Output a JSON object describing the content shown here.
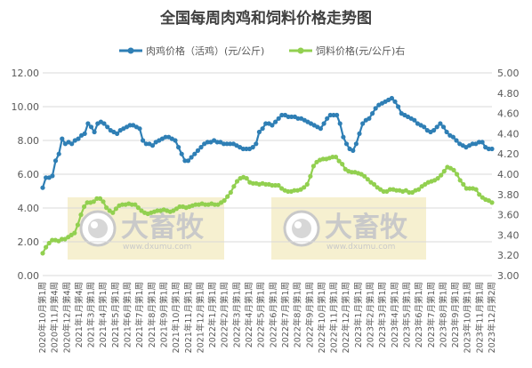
{
  "chart_data": {
    "type": "line",
    "title": "全国每周肉鸡和饲料价格走势图",
    "legend_position": "top",
    "grid": true,
    "y_left": {
      "min": 0,
      "max": 12,
      "step": 2,
      "tick_labels": [
        "0.00",
        "2.00",
        "4.00",
        "6.00",
        "8.00",
        "10.00",
        "12.00"
      ]
    },
    "y_right": {
      "min": 3.0,
      "max": 5.0,
      "step": 0.2,
      "tick_labels": [
        "3.00",
        "3.20",
        "3.40",
        "3.60",
        "3.80",
        "4.00",
        "4.20",
        "4.40",
        "4.60",
        "4.80",
        "5.00"
      ]
    },
    "x_tick_labels": [
      "2020年10月第1周",
      "2020年11月第4周",
      "2020年12月第4周",
      "2021年1月第4周",
      "2021年3月第1周",
      "2021年4月第1周",
      "2021年5月第1周",
      "2021年6月第1周",
      "2021年7月第1周",
      "2021年8月第1周",
      "2021年9月第1周",
      "2021年10月第1周",
      "2021年11月第1周",
      "2021年12月第1周",
      "2022年1月第1周",
      "2022年2月第1周",
      "2022年3月第1周",
      "2022年4月第1周",
      "2022年5月第1周",
      "2022年6月第1周",
      "2022年7月第1周",
      "2022年8月第1周",
      "2022年9月第1周",
      "2022年10月第1周",
      "2022年11月第1周",
      "2022年12月第1周",
      "2023年1月第1周",
      "2023年2月第1周",
      "2023年3月第1周",
      "2023年4月第1周",
      "2023年5月第1周",
      "2023年6月第1周",
      "2023年7月第1周",
      "2023年8月第1周",
      "2023年9月第1周",
      "2023年10月第1周",
      "2023年11月第1周",
      "2023年12月第2周"
    ],
    "series": [
      {
        "name": "肉鸡价格（活鸡）(元/公斤)",
        "axis": "left",
        "color": "#2f7fb5",
        "values": [
          5.2,
          5.8,
          5.8,
          5.9,
          6.8,
          7.2,
          8.1,
          7.8,
          7.9,
          7.8,
          8.0,
          8.1,
          8.3,
          8.4,
          9.0,
          8.8,
          8.5,
          9.0,
          9.1,
          9.0,
          8.8,
          8.6,
          8.5,
          8.4,
          8.6,
          8.7,
          8.8,
          8.9,
          8.9,
          8.8,
          8.7,
          8.0,
          7.8,
          7.8,
          7.7,
          7.9,
          8.0,
          8.1,
          8.2,
          8.2,
          8.1,
          8.0,
          7.6,
          7.2,
          6.8,
          6.8,
          7.0,
          7.2,
          7.4,
          7.6,
          7.8,
          7.9,
          7.9,
          8.0,
          7.9,
          7.9,
          7.8,
          7.8,
          7.8,
          7.8,
          7.7,
          7.6,
          7.5,
          7.5,
          7.5,
          7.6,
          7.8,
          8.5,
          8.7,
          9.0,
          9.0,
          8.9,
          9.1,
          9.3,
          9.5,
          9.5,
          9.4,
          9.4,
          9.4,
          9.3,
          9.3,
          9.2,
          9.1,
          9.0,
          8.9,
          8.8,
          8.7,
          9.0,
          9.3,
          9.5,
          9.5,
          9.5,
          9.0,
          8.2,
          7.8,
          7.5,
          7.4,
          7.8,
          8.4,
          9.0,
          9.2,
          9.3,
          9.6,
          9.9,
          10.1,
          10.2,
          10.3,
          10.4,
          10.5,
          10.3,
          10.0,
          9.6,
          9.5,
          9.4,
          9.3,
          9.2,
          9.0,
          8.9,
          8.8,
          8.6,
          8.5,
          8.6,
          8.8,
          9.0,
          8.8,
          8.5,
          8.3,
          8.2,
          8.0,
          7.8,
          7.7,
          7.6,
          7.7,
          7.8,
          7.8,
          7.9,
          7.9,
          7.6,
          7.5,
          7.5
        ]
      },
      {
        "name": "饲料价格(元/公斤)右",
        "axis": "right",
        "color": "#92d050",
        "values": [
          3.22,
          3.28,
          3.32,
          3.35,
          3.35,
          3.34,
          3.36,
          3.36,
          3.38,
          3.4,
          3.42,
          3.5,
          3.6,
          3.68,
          3.72,
          3.72,
          3.73,
          3.76,
          3.76,
          3.73,
          3.67,
          3.64,
          3.62,
          3.66,
          3.69,
          3.7,
          3.7,
          3.71,
          3.7,
          3.7,
          3.67,
          3.64,
          3.62,
          3.61,
          3.62,
          3.63,
          3.64,
          3.64,
          3.65,
          3.64,
          3.63,
          3.64,
          3.66,
          3.68,
          3.68,
          3.67,
          3.68,
          3.69,
          3.7,
          3.7,
          3.71,
          3.7,
          3.7,
          3.71,
          3.7,
          3.7,
          3.72,
          3.74,
          3.78,
          3.82,
          3.88,
          3.93,
          3.96,
          3.97,
          3.96,
          3.92,
          3.91,
          3.91,
          3.9,
          3.91,
          3.9,
          3.9,
          3.89,
          3.89,
          3.89,
          3.86,
          3.84,
          3.83,
          3.83,
          3.84,
          3.84,
          3.85,
          3.87,
          3.9,
          3.98,
          4.08,
          4.12,
          4.14,
          4.15,
          4.15,
          4.16,
          4.17,
          4.17,
          4.13,
          4.1,
          4.05,
          4.03,
          4.02,
          4.02,
          4.01,
          4.0,
          3.98,
          3.95,
          3.92,
          3.9,
          3.87,
          3.85,
          3.83,
          3.83,
          3.85,
          3.85,
          3.84,
          3.84,
          3.83,
          3.84,
          3.82,
          3.82,
          3.84,
          3.85,
          3.88,
          3.9,
          3.92,
          3.93,
          3.94,
          3.96,
          3.99,
          4.03,
          4.07,
          4.06,
          4.04,
          4.0,
          3.94,
          3.9,
          3.86,
          3.86,
          3.86,
          3.85,
          3.8,
          3.77,
          3.75,
          3.74,
          3.72
        ]
      }
    ],
    "watermarks": [
      {
        "brand": "大畜牧",
        "url": "www.dxumu.com"
      },
      {
        "brand": "大畜牧",
        "url": "www.dxumu.com"
      }
    ]
  }
}
